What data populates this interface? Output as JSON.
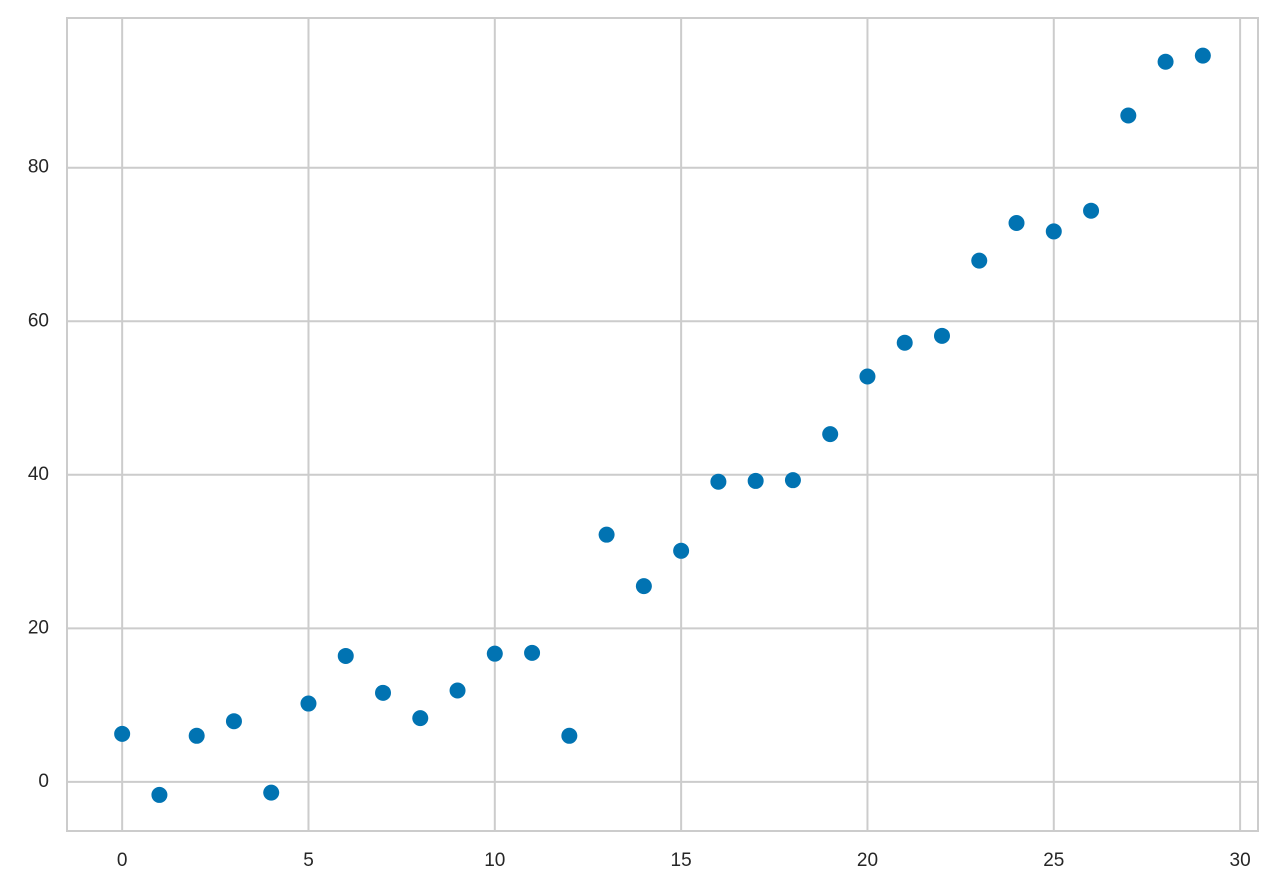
{
  "chart_data": {
    "type": "scatter",
    "x": [
      0,
      1,
      2,
      3,
      4,
      5,
      6,
      7,
      8,
      9,
      10,
      11,
      12,
      13,
      14,
      15,
      16,
      17,
      18,
      19,
      20,
      21,
      22,
      23,
      24,
      25,
      26,
      27,
      28,
      29
    ],
    "values": [
      6.25,
      -1.7,
      6.0,
      7.9,
      -1.4,
      10.2,
      16.4,
      11.6,
      8.3,
      11.9,
      16.7,
      16.8,
      6.0,
      32.2,
      25.5,
      30.1,
      39.1,
      39.2,
      39.3,
      45.3,
      52.8,
      57.2,
      58.1,
      67.9,
      72.8,
      71.7,
      74.4,
      86.8,
      93.8,
      94.6
    ],
    "color": "#0173b2",
    "xlim": [
      -1.48,
      30.48
    ],
    "xticks": [
      0,
      5,
      10,
      15,
      20,
      25,
      30
    ],
    "ylim": [
      -6.4,
      99.5
    ],
    "yticks": [
      0,
      20,
      40,
      60,
      80
    ],
    "grid": true
  }
}
